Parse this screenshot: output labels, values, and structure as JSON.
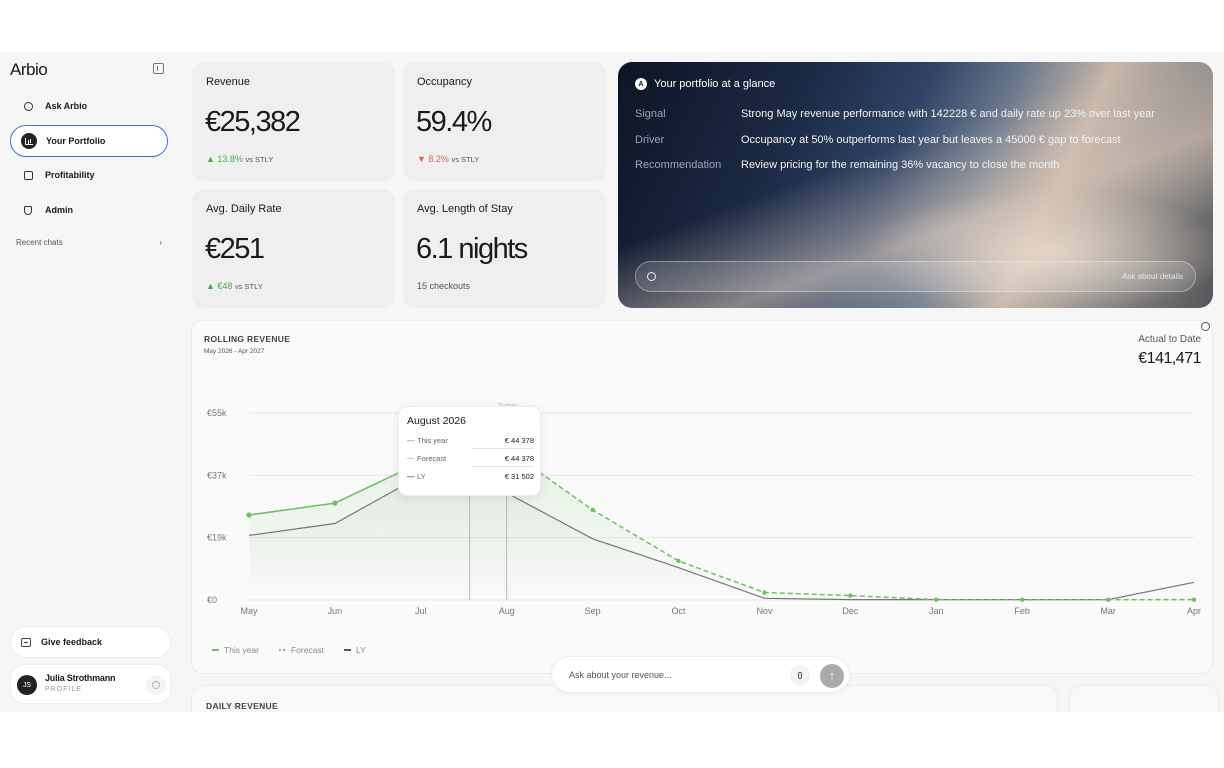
{
  "app": {
    "brand": "Arbio"
  },
  "sidebar": {
    "items": [
      {
        "label": "Ask Arbio",
        "icon": "chat-bubble-icon",
        "active": false
      },
      {
        "label": "Your Portfolio",
        "icon": "bar-chart-icon",
        "active": true
      },
      {
        "label": "Profitability",
        "icon": "document-icon",
        "active": false
      },
      {
        "label": "Admin",
        "icon": "shield-icon",
        "active": false
      }
    ],
    "recent_chats": "Recent chats",
    "feedback": "Give feedback",
    "profile": {
      "initials": "JS",
      "name": "Julia Strothmann",
      "role": "PROFILE"
    }
  },
  "kpis": {
    "revenue": {
      "title": "Revenue",
      "value": "€25,382",
      "delta": "▲ 13.8%",
      "vs": "vs STLY"
    },
    "occupancy": {
      "title": "Occupancy",
      "value": "59.4%",
      "delta": "▼ 8.2%",
      "vs": "vs STLY"
    },
    "adr": {
      "title": "Avg. Daily Rate",
      "value": "€251",
      "delta": "▲ €48",
      "vs": "vs STLY"
    },
    "alos": {
      "title": "Avg. Length of Stay",
      "value": "6.1 nights",
      "sub": "15 checkouts"
    }
  },
  "portfolio": {
    "logo": "A",
    "title": "Your portfolio at a glance",
    "rows": [
      {
        "label": "Signal",
        "text": "Strong May revenue performance with 142228 € and daily rate up 23% over last year"
      },
      {
        "label": "Driver",
        "text": "Occupancy at 50% outperforms last year but leaves a 45000 € gap to forecast"
      },
      {
        "label": "Recommendation",
        "text": "Review pricing for the remaining 36% vacancy to close the month"
      }
    ],
    "ask_placeholder": "Ask about details"
  },
  "rolling": {
    "title": "ROLLING REVENUE",
    "subtitle": "May 2026 - Apr 2027",
    "actual_label": "Actual to Date",
    "actual_value": "€141,471",
    "today_label": "Today",
    "legend": {
      "this_year": "This year",
      "forecast": "Forecast",
      "ly": "LY"
    },
    "tooltip": {
      "title": "August 2026",
      "this_year_label": "This year",
      "this_year_value": "€ 44 378",
      "forecast_label": "Forecast",
      "forecast_value": "€ 44 378",
      "ly_label": "LY",
      "ly_value": "€ 31 502"
    }
  },
  "chart_data": {
    "type": "line",
    "title": "ROLLING REVENUE",
    "x": [
      "May",
      "Jun",
      "Jul",
      "Aug",
      "Sep",
      "Oct",
      "Nov",
      "Dec",
      "Jan",
      "Feb",
      "Mar",
      "Apr"
    ],
    "y_ticks": [
      "€0",
      "€19k",
      "€37k",
      "€55k"
    ],
    "ylim": [
      0,
      55000
    ],
    "series": [
      {
        "name": "This year",
        "style": "solid",
        "color": "#6fbf63",
        "values": [
          25000,
          28500,
          40500,
          44378,
          null,
          null,
          null,
          null,
          null,
          null,
          null,
          null
        ]
      },
      {
        "name": "Forecast",
        "style": "dashed",
        "color": "#6fbf63",
        "values": [
          null,
          null,
          null,
          44378,
          26500,
          11500,
          2200,
          1300,
          100,
          100,
          100,
          100
        ]
      },
      {
        "name": "LY",
        "style": "solid",
        "color": "#777777",
        "values": [
          19000,
          22500,
          36500,
          31502,
          18000,
          9500,
          500,
          100,
          100,
          100,
          100,
          5200
        ]
      }
    ],
    "grid": true,
    "legend_position": "bottom-left"
  },
  "chat": {
    "placeholder": "Ask about your revenue..."
  },
  "daily": {
    "title": "DAILY REVENUE"
  },
  "colors": {
    "accent_green": "#6fbf63",
    "negative_red": "#e06060",
    "active_border": "#3d6fe0"
  }
}
